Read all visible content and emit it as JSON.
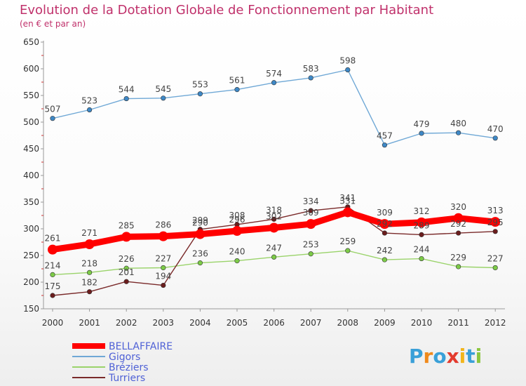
{
  "title": "Evolution de la Dotation Globale de Fonctionnement par Habitant",
  "subtitle": "(en € et par an)",
  "logo": {
    "text": "Proxiti",
    "colors": [
      "#3aa0d8",
      "#f08a1c",
      "#3aa0d8",
      "#e33b2e",
      "#f2b51c",
      "#3aa0d8",
      "#8cc63f"
    ]
  },
  "chart_data": {
    "type": "line",
    "title": "Evolution de la Dotation Globale de Fonctionnement par Habitant",
    "subtitle": "(en € et par an)",
    "x": [
      "2000",
      "2001",
      "2002",
      "2003",
      "2004",
      "2005",
      "2006",
      "2007",
      "2008",
      "2009",
      "2010",
      "2011",
      "2012"
    ],
    "ylim": [
      150,
      650
    ],
    "yticks": [
      150,
      200,
      250,
      300,
      350,
      400,
      450,
      500,
      550,
      600,
      650
    ],
    "grid": false,
    "legend_position": "bottom-left",
    "series": [
      {
        "name": "Gigors",
        "color": "#6fa8d6",
        "marker_color": "#3e88c6",
        "values": [
          507,
          523,
          544,
          545,
          553,
          561,
          574,
          583,
          598,
          457,
          479,
          480,
          470
        ]
      },
      {
        "name": "Bréziers",
        "color": "#9ad36a",
        "marker_color": "#7ccb47",
        "values": [
          214,
          218,
          226,
          227,
          236,
          240,
          247,
          253,
          259,
          242,
          244,
          229,
          227
        ]
      },
      {
        "name": "Turriers",
        "color": "#7a2a2a",
        "marker_color": "#6b1d1d",
        "values": [
          175,
          182,
          201,
          194,
          299,
          308,
          318,
          334,
          341,
          292,
          289,
          292,
          295
        ]
      },
      {
        "name": "BELLAFFAIRE",
        "color": "#ff0000",
        "marker_color": "#ff0000",
        "values": [
          261,
          271,
          285,
          286,
          290,
          296,
          302,
          309,
          331,
          309,
          312,
          320,
          313
        ]
      }
    ]
  }
}
